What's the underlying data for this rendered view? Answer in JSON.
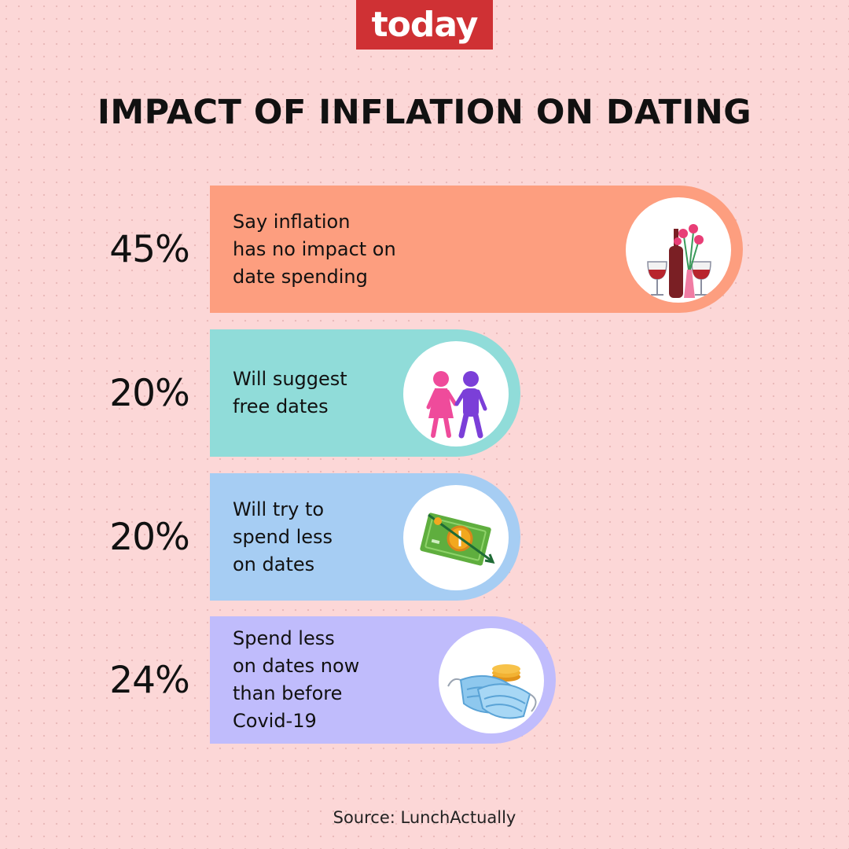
{
  "brand": {
    "logo_text": "today",
    "color": "#cf3134"
  },
  "title": "IMPACT OF INFLATION ON DATING",
  "source": "Source: LunchActually",
  "chart_data": {
    "type": "bar",
    "title": "IMPACT OF INFLATION ON DATING",
    "categories": [
      "Say inflation\nhas no impact on\ndate spending",
      "Will suggest\nfree dates",
      "Will try to\nspend less\non dates",
      "Spend less\non dates now\nthan before\nCovid-19"
    ],
    "values": [
      45,
      20,
      20,
      24
    ],
    "value_labels": [
      "45%",
      "20%",
      "20%",
      "24%"
    ],
    "colors": [
      "#fd9e7f",
      "#90dcd9",
      "#a6cdf3",
      "#c0bcfc"
    ],
    "icons": [
      "wine-and-roses-icon",
      "couple-holding-hands-icon",
      "falling-money-icon",
      "face-masks-and-coins-icon"
    ],
    "orientation": "horizontal"
  }
}
